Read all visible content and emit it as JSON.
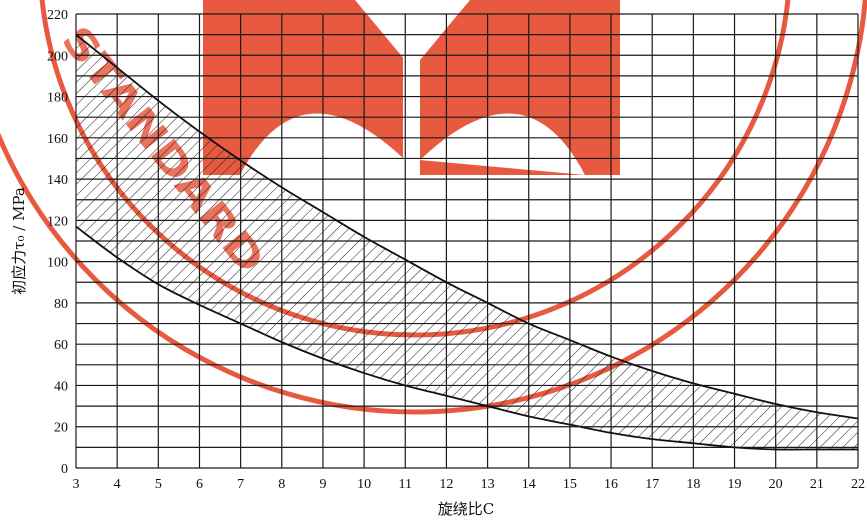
{
  "chart_data": {
    "type": "area",
    "xlabel": "旋绕比C",
    "ylabel": "初应力τ₀ / MPa",
    "xlim": [
      3,
      22
    ],
    "ylim": [
      0,
      220
    ],
    "x_ticks": [
      "3",
      "4",
      "5",
      "6",
      "7",
      "8",
      "9",
      "10",
      "11",
      "12",
      "13",
      "14",
      "15",
      "16",
      "17",
      "18",
      "19",
      "20",
      "21",
      "22"
    ],
    "y_ticks": [
      "0",
      "20",
      "40",
      "60",
      "80",
      "100",
      "120",
      "140",
      "160",
      "180",
      "200",
      "220"
    ],
    "grid": true,
    "series": [
      {
        "x": [
          3,
          4,
          5,
          6,
          7,
          8,
          9,
          10,
          11,
          12,
          13,
          14,
          15,
          16,
          17,
          18,
          19,
          20,
          21,
          22
        ],
        "values": [
          210,
          194,
          178,
          163,
          149,
          136,
          124,
          112,
          101,
          90,
          80,
          70,
          62,
          54,
          47,
          41,
          36,
          31,
          27,
          24
        ]
      },
      {
        "x": [
          3,
          4,
          5,
          6,
          7,
          8,
          9,
          10,
          11,
          12,
          13,
          14,
          15,
          16,
          17,
          18,
          19,
          20,
          21,
          22
        ],
        "values": [
          117,
          102,
          89,
          79,
          70,
          61,
          53,
          46,
          40,
          35,
          30,
          25,
          21,
          17,
          14,
          12,
          10,
          9,
          9,
          9
        ]
      }
    ],
    "shaded_between_series": true
  },
  "watermark": {
    "text": "STANDARD",
    "color": "#e85a40"
  }
}
